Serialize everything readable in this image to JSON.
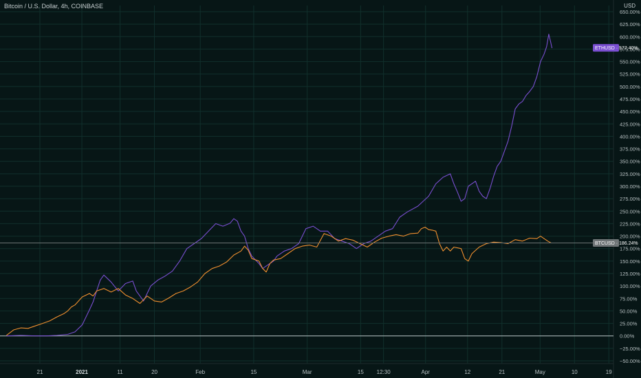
{
  "header": {
    "title": "Bitcoin / U.S. Dollar, 4h, COINBASE",
    "currency": "USD"
  },
  "colors": {
    "background": "#071616",
    "eth_line": "#7a4fd1",
    "btc_line": "#f1902f",
    "zero_line": "#b9c2c4"
  },
  "chart_data": {
    "type": "line",
    "y_unit": "%",
    "ylim": [
      -50,
      650
    ],
    "y_ticks": [
      "650.00%",
      "625.00%",
      "600.00%",
      "575.00%",
      "550.00%",
      "525.00%",
      "500.00%",
      "475.00%",
      "450.00%",
      "425.00%",
      "400.00%",
      "375.00%",
      "350.00%",
      "325.00%",
      "300.00%",
      "275.00%",
      "250.00%",
      "225.00%",
      "200.00%",
      "175.00%",
      "150.00%",
      "125.00%",
      "100.00%",
      "75.00%",
      "50.00%",
      "25.00%",
      "0.00%",
      "−25.00%",
      "−50.00%"
    ],
    "x_ticks": [
      {
        "label": "21",
        "day": 0
      },
      {
        "label": "2021",
        "day": 11,
        "bold": true
      },
      {
        "label": "11",
        "day": 21
      },
      {
        "label": "20",
        "day": 30
      },
      {
        "label": "Feb",
        "day": 42
      },
      {
        "label": "15",
        "day": 56
      },
      {
        "label": "Mar",
        "day": 70
      },
      {
        "label": "15",
        "day": 84
      },
      {
        "label": "12:30",
        "day": 90
      },
      {
        "label": "Apr",
        "day": 101
      },
      {
        "label": "12",
        "day": 112
      },
      {
        "label": "21",
        "day": 121
      },
      {
        "label": "May",
        "day": 131
      },
      {
        "label": "10",
        "day": 140
      },
      {
        "label": "19",
        "day": 149
      }
    ],
    "x_domain_days": [
      -4.5,
      154
    ],
    "series": [
      {
        "name": "ETHUSD",
        "color": "#7a4fd1",
        "last_value": "577.40%",
        "points": [
          [
            -4,
            0
          ],
          [
            0,
            1
          ],
          [
            4,
            0
          ],
          [
            7,
            0
          ],
          [
            10,
            1
          ],
          [
            13,
            3
          ],
          [
            15,
            8
          ],
          [
            17,
            22
          ],
          [
            19,
            52
          ],
          [
            20,
            68
          ],
          [
            21,
            90
          ],
          [
            22,
            112
          ],
          [
            23,
            122
          ],
          [
            25,
            108
          ],
          [
            27,
            90
          ],
          [
            29,
            105
          ],
          [
            31,
            110
          ],
          [
            32,
            90
          ],
          [
            34,
            70
          ],
          [
            36,
            100
          ],
          [
            38,
            112
          ],
          [
            40,
            120
          ],
          [
            42,
            130
          ],
          [
            44,
            150
          ],
          [
            46,
            175
          ],
          [
            48,
            185
          ],
          [
            50,
            195
          ],
          [
            52,
            210
          ],
          [
            54,
            225
          ],
          [
            56,
            220
          ],
          [
            58,
            226
          ],
          [
            59,
            235
          ],
          [
            60,
            230
          ],
          [
            61,
            210
          ],
          [
            62,
            200
          ],
          [
            63,
            175
          ],
          [
            64,
            160
          ],
          [
            66,
            145
          ],
          [
            67,
            135
          ],
          [
            68,
            140
          ],
          [
            69,
            145
          ],
          [
            70,
            150
          ],
          [
            71,
            160
          ],
          [
            73,
            170
          ],
          [
            75,
            175
          ],
          [
            77,
            185
          ],
          [
            79,
            215
          ],
          [
            81,
            220
          ],
          [
            83,
            210
          ],
          [
            85,
            210
          ],
          [
            87,
            195
          ],
          [
            89,
            190
          ],
          [
            91,
            185
          ],
          [
            93,
            175
          ],
          [
            95,
            185
          ],
          [
            97,
            190
          ],
          [
            99,
            200
          ],
          [
            101,
            210
          ],
          [
            103,
            215
          ],
          [
            105,
            238
          ],
          [
            107,
            248
          ],
          [
            110,
            260
          ],
          [
            113,
            280
          ],
          [
            115,
            305
          ],
          [
            117,
            318
          ],
          [
            119,
            325
          ],
          [
            120,
            305
          ],
          [
            121,
            288
          ],
          [
            122,
            270
          ],
          [
            123,
            275
          ],
          [
            124,
            300
          ],
          [
            126,
            310
          ],
          [
            127,
            290
          ],
          [
            128,
            280
          ],
          [
            129,
            275
          ],
          [
            130,
            295
          ],
          [
            131,
            320
          ],
          [
            132,
            340
          ],
          [
            133,
            350
          ],
          [
            135,
            390
          ],
          [
            136,
            420
          ],
          [
            137,
            455
          ],
          [
            138,
            465
          ],
          [
            139,
            470
          ],
          [
            140,
            482
          ],
          [
            141,
            490
          ],
          [
            142,
            500
          ],
          [
            143,
            520
          ],
          [
            144,
            550
          ],
          [
            145,
            565
          ],
          [
            145.7,
            580
          ],
          [
            146.3,
            605
          ],
          [
            146.8,
            590
          ],
          [
            147.2,
            577
          ]
        ]
      },
      {
        "name": "BTCUSD",
        "color": "#f1902f",
        "last_value": "186.24%",
        "points": [
          [
            -4,
            1
          ],
          [
            -2,
            12
          ],
          [
            0,
            16
          ],
          [
            2,
            15
          ],
          [
            4,
            20
          ],
          [
            6,
            25
          ],
          [
            8,
            30
          ],
          [
            10,
            38
          ],
          [
            12,
            45
          ],
          [
            13,
            50
          ],
          [
            14,
            58
          ],
          [
            15,
            62
          ],
          [
            16,
            70
          ],
          [
            17,
            78
          ],
          [
            19,
            85
          ],
          [
            20,
            80
          ],
          [
            21,
            90
          ],
          [
            23,
            95
          ],
          [
            25,
            88
          ],
          [
            27,
            95
          ],
          [
            29,
            82
          ],
          [
            31,
            75
          ],
          [
            33,
            65
          ],
          [
            35,
            80
          ],
          [
            37,
            70
          ],
          [
            39,
            68
          ],
          [
            41,
            76
          ],
          [
            43,
            85
          ],
          [
            45,
            90
          ],
          [
            47,
            98
          ],
          [
            49,
            108
          ],
          [
            51,
            125
          ],
          [
            53,
            135
          ],
          [
            55,
            140
          ],
          [
            57,
            148
          ],
          [
            59,
            162
          ],
          [
            61,
            170
          ],
          [
            62,
            180
          ],
          [
            63,
            172
          ],
          [
            64,
            155
          ],
          [
            66,
            150
          ],
          [
            67,
            135
          ],
          [
            68,
            128
          ],
          [
            69,
            145
          ],
          [
            70,
            152
          ],
          [
            72,
            155
          ],
          [
            74,
            165
          ],
          [
            76,
            175
          ],
          [
            78,
            180
          ],
          [
            80,
            182
          ],
          [
            82,
            178
          ],
          [
            84,
            205
          ],
          [
            86,
            200
          ],
          [
            88,
            190
          ],
          [
            90,
            195
          ],
          [
            92,
            192
          ],
          [
            94,
            185
          ],
          [
            96,
            178
          ],
          [
            98,
            188
          ],
          [
            100,
            196
          ],
          [
            102,
            200
          ],
          [
            104,
            203
          ],
          [
            106,
            200
          ],
          [
            108,
            205
          ],
          [
            110,
            206
          ],
          [
            111,
            215
          ],
          [
            112,
            218
          ],
          [
            113,
            213
          ],
          [
            114,
            212
          ],
          [
            115,
            210
          ],
          [
            116,
            185
          ],
          [
            117,
            170
          ],
          [
            118,
            178
          ],
          [
            119,
            170
          ],
          [
            120,
            178
          ],
          [
            122,
            175
          ],
          [
            123,
            155
          ],
          [
            124,
            150
          ],
          [
            125,
            165
          ],
          [
            127,
            178
          ],
          [
            129,
            185
          ],
          [
            131,
            188
          ],
          [
            133,
            187
          ],
          [
            135,
            185
          ],
          [
            137,
            193
          ],
          [
            139,
            190
          ],
          [
            141,
            196
          ],
          [
            143,
            195
          ],
          [
            144,
            200
          ],
          [
            145,
            195
          ],
          [
            146,
            190
          ],
          [
            147,
            186
          ]
        ]
      }
    ]
  }
}
